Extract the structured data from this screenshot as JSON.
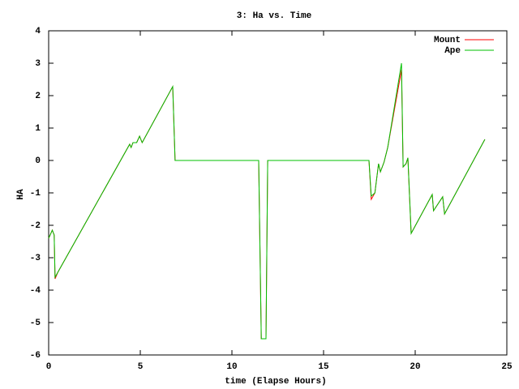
{
  "chart_data": {
    "type": "line",
    "title": "3: Ha vs. Time",
    "xlabel": "time (Elapse Hours)",
    "ylabel": "HA",
    "xlim": [
      0,
      25
    ],
    "xticks": [
      0,
      5,
      10,
      15,
      20,
      25
    ],
    "ylim": [
      -6,
      4
    ],
    "yticks": [
      -6,
      -5,
      -4,
      -3,
      -2,
      -1,
      0,
      1,
      2,
      3,
      4
    ],
    "legend": "top-right",
    "series": [
      {
        "name": "Mount",
        "color": "#ff0000",
        "x": [
          0,
          0.2,
          0.3,
          0.35,
          0.5,
          4.42,
          4.5,
          4.6,
          4.8,
          4.96,
          5.1,
          6.77,
          6.9,
          11.46,
          11.6,
          11.86,
          11.95,
          17.48,
          17.6,
          17.8,
          18.0,
          18.1,
          18.3,
          18.5,
          19.25,
          19.34,
          19.5,
          19.6,
          19.78,
          20.93,
          21.0,
          21.5,
          21.6,
          23.8
        ],
        "values": [
          -2.4,
          -2.15,
          -2.3,
          -3.65,
          -3.45,
          0.5,
          0.4,
          0.55,
          0.55,
          0.75,
          0.55,
          2.28,
          0,
          0,
          -5.5,
          -5.5,
          0,
          0,
          -1.2,
          -1.0,
          -0.1,
          -0.35,
          -0.05,
          0.4,
          2.8,
          -0.2,
          -0.1,
          0.08,
          -2.25,
          -1.05,
          -1.55,
          -1.12,
          -1.65,
          0.65
        ]
      },
      {
        "name": "Ape",
        "color": "#00c000",
        "x": [
          0,
          0.2,
          0.3,
          0.35,
          0.5,
          4.42,
          4.5,
          4.6,
          4.8,
          4.96,
          5.1,
          6.77,
          6.9,
          11.46,
          11.6,
          11.86,
          11.95,
          17.48,
          17.6,
          17.8,
          18.0,
          18.1,
          18.3,
          18.5,
          19.25,
          19.34,
          19.5,
          19.6,
          19.78,
          20.93,
          21.0,
          21.5,
          21.6,
          23.8
        ],
        "values": [
          -2.4,
          -2.15,
          -2.3,
          -3.6,
          -3.45,
          0.5,
          0.4,
          0.55,
          0.55,
          0.75,
          0.55,
          2.28,
          0,
          0,
          -5.5,
          -5.5,
          0,
          0,
          -1.1,
          -1.0,
          -0.1,
          -0.35,
          -0.05,
          0.4,
          3.0,
          -0.2,
          -0.1,
          0.08,
          -2.25,
          -1.05,
          -1.55,
          -1.12,
          -1.65,
          0.65
        ]
      }
    ]
  }
}
